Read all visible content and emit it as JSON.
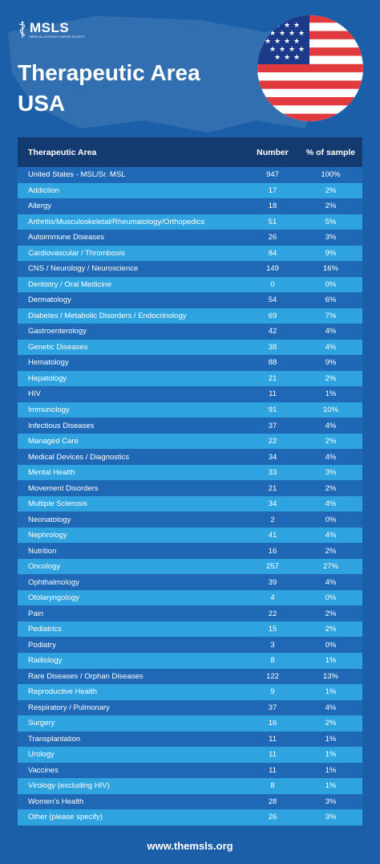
{
  "brand": {
    "name": "MSLS",
    "subtitle": "MEDICAL SCIENCE LIAISON SOCIETY",
    "logo_icon": "caduceus-icon"
  },
  "header": {
    "title_line1": "Therapeutic Area",
    "title_line2": "USA",
    "flag_icon": "us-flag-icon"
  },
  "colors": {
    "background": "#1a5fa8",
    "header_row": "#133b70",
    "row_dark": "#1e68b6",
    "row_light": "#2fa3df",
    "flag_red": "#e03a3e",
    "flag_blue": "#1c3a8a"
  },
  "table": {
    "columns": [
      "Therapeutic Area",
      "Number",
      "% of sample"
    ],
    "rows": [
      [
        "United States - MSL/Sr. MSL",
        "947",
        "100%"
      ],
      [
        "Addiction",
        "17",
        "2%"
      ],
      [
        "Allergy",
        "18",
        "2%"
      ],
      [
        "Arthritis/Musculoskeletal/Rheumatology/Orthopedics",
        "51",
        "5%"
      ],
      [
        "Autoimmune Diseases",
        "26",
        "3%"
      ],
      [
        "Cardiovascular / Thrombosis",
        "84",
        "9%"
      ],
      [
        "CNS / Neurology / Neuroscience",
        "149",
        "16%"
      ],
      [
        "Dentistry / Oral Medicine",
        "0",
        "0%"
      ],
      [
        "Dermatology",
        "54",
        "6%"
      ],
      [
        "Diabetes / Metabolic Disorders / Endocrinology",
        "69",
        "7%"
      ],
      [
        "Gastroenterology",
        "42",
        "4%"
      ],
      [
        "Genetic Diseases",
        "38",
        "4%"
      ],
      [
        "Hematology",
        "88",
        "9%"
      ],
      [
        "Hepatology",
        "21",
        "2%"
      ],
      [
        "HIV",
        "11",
        "1%"
      ],
      [
        "Immunology",
        "91",
        "10%"
      ],
      [
        "Infectious Diseases",
        "37",
        "4%"
      ],
      [
        "Managed Care",
        "22",
        "2%"
      ],
      [
        "Medical Devices / Diagnostics",
        "34",
        "4%"
      ],
      [
        "Mental Health",
        "33",
        "3%"
      ],
      [
        "Movement Disorders",
        "21",
        "2%"
      ],
      [
        "Multiple Sclerosis",
        "34",
        "4%"
      ],
      [
        "Neonatology",
        "2",
        "0%"
      ],
      [
        "Nephrology",
        "41",
        "4%"
      ],
      [
        "Nutrition",
        "16",
        "2%"
      ],
      [
        "Oncology",
        "257",
        "27%"
      ],
      [
        "Ophthalmology",
        "39",
        "4%"
      ],
      [
        "Otolaryngology",
        "4",
        "0%"
      ],
      [
        "Pain",
        "22",
        "2%"
      ],
      [
        "Pediatrics",
        "15",
        "2%"
      ],
      [
        "Podiatry",
        "3",
        "0%"
      ],
      [
        "Radiology",
        "8",
        "1%"
      ],
      [
        "Rare Diseases / Orphan Diseases",
        "122",
        "13%"
      ],
      [
        "Reproductive Health",
        "9",
        "1%"
      ],
      [
        "Respiratory / Pulmonary",
        "37",
        "4%"
      ],
      [
        "Surgery",
        "16",
        "2%"
      ],
      [
        "Transplantation",
        "11",
        "1%"
      ],
      [
        "Urology",
        "11",
        "1%"
      ],
      [
        "Vaccines",
        "11",
        "1%"
      ],
      [
        "Virology (excluding HIV)",
        "8",
        "1%"
      ],
      [
        "Women's Health",
        "28",
        "3%"
      ],
      [
        "Other (please specify)",
        "26",
        "3%"
      ]
    ]
  },
  "footer": {
    "url": "www.themsls.org"
  }
}
